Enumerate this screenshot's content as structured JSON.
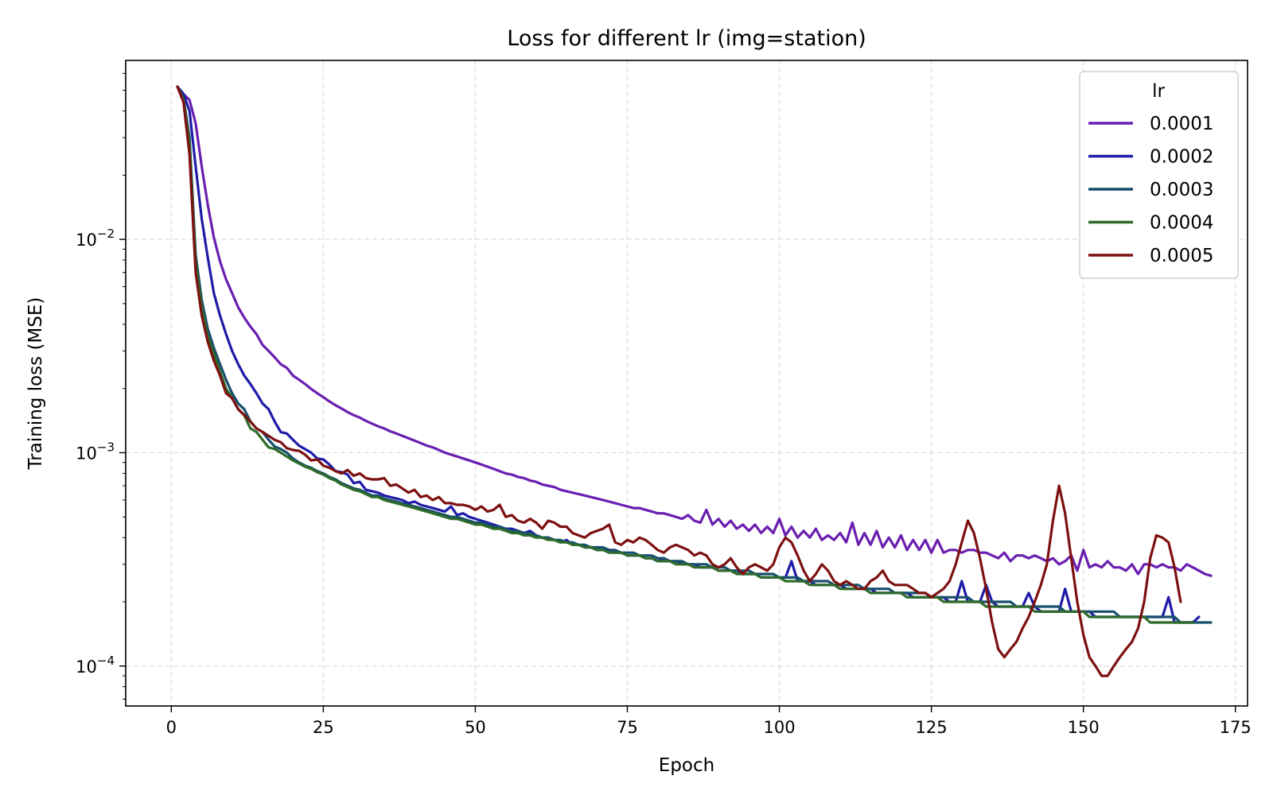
{
  "chart_data": {
    "type": "line",
    "title": "Loss for different lr (img=station)",
    "xlabel": "Epoch",
    "ylabel": "Training loss (MSE)",
    "yscale": "log",
    "xlim": [
      -7.5,
      177
    ],
    "ylim": [
      6.5e-05,
      0.069
    ],
    "grid": true,
    "x_ticks": [
      0,
      25,
      50,
      75,
      100,
      125,
      150,
      175
    ],
    "y_ticks": [
      {
        "value": 0.01,
        "base": "10",
        "exp": "−2"
      },
      {
        "value": 0.001,
        "base": "10",
        "exp": "−3"
      },
      {
        "value": 0.0001,
        "base": "10",
        "exp": "−4"
      }
    ],
    "legend": {
      "title": "lr",
      "position": "top-right"
    },
    "series": [
      {
        "name": "0.0001",
        "color": "#6a1fb0",
        "x_start": 1,
        "values": [
          0.052,
          0.048,
          0.045,
          0.035,
          0.022,
          0.0145,
          0.0102,
          0.0079,
          0.0065,
          0.0056,
          0.0048,
          0.0043,
          0.0039,
          0.0036,
          0.0032,
          0.003,
          0.0028,
          0.0026,
          0.0025,
          0.0023,
          0.0022,
          0.0021,
          0.00199,
          0.0019,
          0.00182,
          0.00174,
          0.00167,
          0.00161,
          0.00155,
          0.0015,
          0.00146,
          0.00141,
          0.00137,
          0.00133,
          0.0013,
          0.00126,
          0.00123,
          0.0012,
          0.00117,
          0.00114,
          0.00111,
          0.00108,
          0.00106,
          0.00103,
          0.001,
          0.00098,
          0.00096,
          0.00094,
          0.00092,
          0.0009,
          0.00088,
          0.00086,
          0.00084,
          0.00082,
          0.0008,
          0.00079,
          0.00077,
          0.00076,
          0.00074,
          0.00073,
          0.00071,
          0.0007,
          0.00069,
          0.00067,
          0.00066,
          0.00065,
          0.00064,
          0.00063,
          0.00062,
          0.00061,
          0.0006,
          0.00059,
          0.00058,
          0.00057,
          0.00056,
          0.00055,
          0.00055,
          0.00054,
          0.00053,
          0.00052,
          0.00052,
          0.00051,
          0.0005,
          0.00049,
          0.00051,
          0.00048,
          0.00047,
          0.00054,
          0.00046,
          0.00049,
          0.00045,
          0.00048,
          0.00044,
          0.00046,
          0.00043,
          0.00046,
          0.00042,
          0.00045,
          0.00042,
          0.00049,
          0.00041,
          0.00045,
          0.0004,
          0.00043,
          0.0004,
          0.00044,
          0.00039,
          0.00041,
          0.00039,
          0.00042,
          0.00038,
          0.00047,
          0.00037,
          0.00042,
          0.00037,
          0.00043,
          0.00036,
          0.0004,
          0.00036,
          0.00041,
          0.00035,
          0.00039,
          0.00035,
          0.00039,
          0.00034,
          0.00039,
          0.00034,
          0.00035,
          0.00035,
          0.00034,
          0.00035,
          0.00035,
          0.00034,
          0.00034,
          0.00033,
          0.00032,
          0.00034,
          0.00031,
          0.00033,
          0.00033,
          0.00032,
          0.00033,
          0.00032,
          0.00031,
          0.00032,
          0.0003,
          0.00031,
          0.00033,
          0.00028,
          0.00035,
          0.00029,
          0.0003,
          0.00029,
          0.00031,
          0.00029,
          0.00029,
          0.00028,
          0.0003,
          0.00027,
          0.0003,
          0.0003,
          0.00029,
          0.0003,
          0.00029,
          0.00029,
          0.00028,
          0.0003,
          0.00029,
          0.00028,
          0.00027,
          0.000265
        ]
      },
      {
        "name": "0.0002",
        "color": "#1f1ba8",
        "x_start": 1,
        "values": [
          0.052,
          0.048,
          0.04,
          0.022,
          0.0125,
          0.0082,
          0.0056,
          0.0044,
          0.0036,
          0.003,
          0.0026,
          0.0023,
          0.0021,
          0.0019,
          0.0017,
          0.0016,
          0.0014,
          0.00125,
          0.00123,
          0.00115,
          0.00108,
          0.00104,
          0.001,
          0.00094,
          0.00093,
          0.00088,
          0.00082,
          0.00081,
          0.00079,
          0.00072,
          0.00073,
          0.00067,
          0.00066,
          0.00065,
          0.00063,
          0.00062,
          0.00061,
          0.0006,
          0.00058,
          0.00059,
          0.00057,
          0.00056,
          0.00055,
          0.00054,
          0.00053,
          0.00056,
          0.00051,
          0.00052,
          0.0005,
          0.00049,
          0.00048,
          0.00047,
          0.00046,
          0.00045,
          0.00044,
          0.00044,
          0.00043,
          0.00042,
          0.00043,
          0.00041,
          0.0004,
          0.0004,
          0.00039,
          0.00038,
          0.00039,
          0.00037,
          0.00037,
          0.00036,
          0.00036,
          0.00035,
          0.00035,
          0.00035,
          0.00034,
          0.00034,
          0.00033,
          0.00033,
          0.00033,
          0.00032,
          0.00032,
          0.00031,
          0.00032,
          0.00031,
          0.00031,
          0.0003,
          0.0003,
          0.0003,
          0.00029,
          0.00029,
          0.00029,
          0.00028,
          0.00028,
          0.00028,
          0.00028,
          0.00027,
          0.00027,
          0.00027,
          0.00026,
          0.00026,
          0.00026,
          0.00026,
          0.00026,
          0.00031,
          0.00025,
          0.00025,
          0.00025,
          0.00024,
          0.00024,
          0.00024,
          0.00024,
          0.00024,
          0.00023,
          0.00023,
          0.00023,
          0.00023,
          0.00023,
          0.00022,
          0.00022,
          0.00022,
          0.00022,
          0.00022,
          0.00022,
          0.00021,
          0.00021,
          0.00021,
          0.00021,
          0.00021,
          0.00021,
          0.0002,
          0.0002,
          0.00025,
          0.0002,
          0.0002,
          0.0002,
          0.00024,
          0.0002,
          0.00019,
          0.00019,
          0.00019,
          0.00019,
          0.00019,
          0.00022,
          0.00019,
          0.00018,
          0.00018,
          0.00018,
          0.00018,
          0.00023,
          0.00018,
          0.00018,
          0.00018,
          0.00018,
          0.00017,
          0.00017,
          0.00017,
          0.00017,
          0.00017,
          0.00017,
          0.00017,
          0.00017,
          0.00017,
          0.00017,
          0.00017,
          0.00017,
          0.00021,
          0.00016,
          0.00016,
          0.00016,
          0.00016,
          0.00017
        ]
      },
      {
        "name": "0.0003",
        "color": "#174f6c",
        "x_start": 1,
        "values": [
          0.052,
          0.046,
          0.03,
          0.0085,
          0.0052,
          0.0038,
          0.0031,
          0.0026,
          0.0022,
          0.0019,
          0.0017,
          0.0016,
          0.0014,
          0.0013,
          0.00125,
          0.00115,
          0.00107,
          0.00104,
          0.001,
          0.00094,
          0.0009,
          0.00087,
          0.00085,
          0.00082,
          0.0008,
          0.00077,
          0.00075,
          0.00072,
          0.0007,
          0.00068,
          0.00067,
          0.00065,
          0.00063,
          0.00063,
          0.00061,
          0.0006,
          0.00059,
          0.00058,
          0.00057,
          0.00056,
          0.00055,
          0.00054,
          0.00053,
          0.00052,
          0.00051,
          0.0005,
          0.0005,
          0.00049,
          0.00048,
          0.00047,
          0.00047,
          0.00046,
          0.00045,
          0.00045,
          0.00044,
          0.00043,
          0.00043,
          0.00042,
          0.00042,
          0.00041,
          0.0004,
          0.0004,
          0.00039,
          0.00039,
          0.00038,
          0.00038,
          0.00037,
          0.00037,
          0.00036,
          0.00036,
          0.00036,
          0.00035,
          0.00035,
          0.00034,
          0.00034,
          0.00034,
          0.00033,
          0.00033,
          0.00033,
          0.00032,
          0.00032,
          0.00031,
          0.00031,
          0.00031,
          0.0003,
          0.0003,
          0.0003,
          0.0003,
          0.00029,
          0.00029,
          0.00029,
          0.00028,
          0.00028,
          0.00028,
          0.00028,
          0.00027,
          0.00027,
          0.00027,
          0.00027,
          0.00026,
          0.00026,
          0.00026,
          0.00026,
          0.00025,
          0.00025,
          0.00025,
          0.00025,
          0.00025,
          0.00024,
          0.00024,
          0.00024,
          0.00024,
          0.00024,
          0.00023,
          0.00023,
          0.00023,
          0.00023,
          0.00023,
          0.00022,
          0.00022,
          0.00022,
          0.00022,
          0.00022,
          0.00022,
          0.00021,
          0.00021,
          0.00021,
          0.00021,
          0.00021,
          0.00021,
          0.00021,
          0.0002,
          0.0002,
          0.0002,
          0.0002,
          0.0002,
          0.0002,
          0.0002,
          0.00019,
          0.00019,
          0.00019,
          0.00019,
          0.00019,
          0.00019,
          0.00019,
          0.00019,
          0.00018,
          0.00018,
          0.00018,
          0.00018,
          0.00018,
          0.00018,
          0.00018,
          0.00018,
          0.00018,
          0.00017,
          0.00017,
          0.00017,
          0.00017,
          0.00017,
          0.00017,
          0.00017,
          0.00017,
          0.00017,
          0.00017,
          0.00016,
          0.00016,
          0.00016,
          0.00016,
          0.00016,
          0.00016
        ]
      },
      {
        "name": "0.0004",
        "color": "#2e6b2a",
        "x_start": 1,
        "values": [
          0.052,
          0.045,
          0.028,
          0.0078,
          0.0048,
          0.0035,
          0.0029,
          0.0024,
          0.002,
          0.0018,
          0.0016,
          0.0015,
          0.0013,
          0.00125,
          0.00115,
          0.00106,
          0.00104,
          0.001,
          0.00096,
          0.00092,
          0.00089,
          0.00086,
          0.00084,
          0.00081,
          0.00079,
          0.00076,
          0.00074,
          0.00071,
          0.00069,
          0.00067,
          0.00066,
          0.00064,
          0.00062,
          0.00062,
          0.0006,
          0.00059,
          0.00058,
          0.00057,
          0.00056,
          0.00055,
          0.00054,
          0.00053,
          0.00052,
          0.00051,
          0.0005,
          0.00049,
          0.00049,
          0.00048,
          0.00047,
          0.00046,
          0.00046,
          0.00045,
          0.00044,
          0.00044,
          0.00043,
          0.00042,
          0.00042,
          0.00041,
          0.00041,
          0.0004,
          0.0004,
          0.00039,
          0.00039,
          0.00038,
          0.00038,
          0.00037,
          0.00037,
          0.00036,
          0.00036,
          0.00035,
          0.00035,
          0.00034,
          0.00034,
          0.00034,
          0.00033,
          0.00033,
          0.00033,
          0.00032,
          0.00032,
          0.00031,
          0.00031,
          0.00031,
          0.0003,
          0.0003,
          0.0003,
          0.00029,
          0.00029,
          0.00029,
          0.00029,
          0.00028,
          0.00028,
          0.00028,
          0.00027,
          0.00027,
          0.00027,
          0.00027,
          0.00026,
          0.00026,
          0.00026,
          0.00026,
          0.00025,
          0.00025,
          0.00025,
          0.00025,
          0.00024,
          0.00024,
          0.00024,
          0.00024,
          0.00024,
          0.00023,
          0.00023,
          0.00023,
          0.00023,
          0.00023,
          0.00022,
          0.00022,
          0.00022,
          0.00022,
          0.00022,
          0.00022,
          0.00021,
          0.00021,
          0.00021,
          0.00021,
          0.00021,
          0.00021,
          0.0002,
          0.0002,
          0.0002,
          0.0002,
          0.0002,
          0.0002,
          0.0002,
          0.00019,
          0.00019,
          0.00019,
          0.00019,
          0.00019,
          0.00019,
          0.00019,
          0.00019,
          0.00018,
          0.00018,
          0.00018,
          0.00018,
          0.00018,
          0.00018,
          0.00018,
          0.00018,
          0.00018,
          0.00017,
          0.00017,
          0.00017,
          0.00017,
          0.00017,
          0.00017,
          0.00017,
          0.00017,
          0.00017,
          0.00017,
          0.00016,
          0.00016,
          0.00016,
          0.00016,
          0.00016,
          0.00016,
          0.00016,
          0.00016
        ]
      },
      {
        "name": "0.0005",
        "color": "#7d1010",
        "x_start": 1,
        "values": [
          0.052,
          0.044,
          0.025,
          0.007,
          0.0044,
          0.0033,
          0.0027,
          0.0023,
          0.0019,
          0.0018,
          0.0016,
          0.0015,
          0.0014,
          0.0013,
          0.00125,
          0.0012,
          0.00115,
          0.00112,
          0.00105,
          0.00103,
          0.00102,
          0.00098,
          0.00092,
          0.00093,
          0.00087,
          0.00085,
          0.00082,
          0.0008,
          0.00083,
          0.00078,
          0.0008,
          0.00076,
          0.00075,
          0.00075,
          0.00076,
          0.0007,
          0.00071,
          0.00068,
          0.00065,
          0.00067,
          0.00062,
          0.00063,
          0.0006,
          0.00062,
          0.00058,
          0.00058,
          0.00057,
          0.00057,
          0.00056,
          0.00054,
          0.00056,
          0.00053,
          0.00054,
          0.00057,
          0.0005,
          0.00051,
          0.00048,
          0.00047,
          0.00049,
          0.00047,
          0.00044,
          0.00048,
          0.00047,
          0.00045,
          0.00045,
          0.00042,
          0.00041,
          0.0004,
          0.00042,
          0.00043,
          0.00044,
          0.00046,
          0.00038,
          0.00037,
          0.00039,
          0.00038,
          0.0004,
          0.00039,
          0.00037,
          0.00035,
          0.00034,
          0.00036,
          0.00037,
          0.00036,
          0.00035,
          0.00033,
          0.00034,
          0.00033,
          0.0003,
          0.00029,
          0.0003,
          0.00032,
          0.00029,
          0.00027,
          0.00029,
          0.0003,
          0.00029,
          0.00028,
          0.0003,
          0.00036,
          0.0004,
          0.00038,
          0.00033,
          0.00028,
          0.00025,
          0.00027,
          0.0003,
          0.00028,
          0.00025,
          0.00024,
          0.00025,
          0.00024,
          0.00023,
          0.00023,
          0.00025,
          0.00026,
          0.00028,
          0.00025,
          0.00024,
          0.00024,
          0.00024,
          0.00023,
          0.00022,
          0.00022,
          0.00021,
          0.00022,
          0.00023,
          0.00025,
          0.0003,
          0.00038,
          0.00048,
          0.00042,
          0.00032,
          0.00023,
          0.00016,
          0.00012,
          0.00011,
          0.00012,
          0.00013,
          0.00015,
          0.00017,
          0.0002,
          0.00024,
          0.0003,
          0.00048,
          0.0007,
          0.00052,
          0.00032,
          0.0002,
          0.00014,
          0.00011,
          0.0001,
          9e-05,
          9e-05,
          0.0001,
          0.00011,
          0.00012,
          0.00013,
          0.00015,
          0.0002,
          0.00032,
          0.00041,
          0.0004,
          0.00038,
          0.00029,
          0.0002
        ]
      }
    ]
  }
}
